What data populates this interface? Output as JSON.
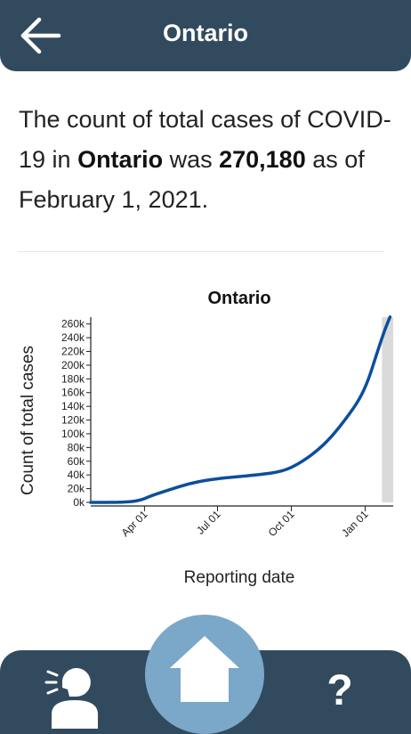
{
  "header": {
    "title": "Ontario",
    "back_icon": "arrow-left-icon"
  },
  "summary": {
    "prefix": "The count of total cases of COVID-19 in ",
    "region": "Ontario",
    "middle": " was ",
    "count": "270,180",
    "suffix": " as of February 1, 2021."
  },
  "chart_data": {
    "type": "line",
    "title": "Ontario",
    "xlabel": "Reporting date",
    "ylabel": "Count of total cases",
    "ylim": [
      0,
      270000
    ],
    "y_ticks": [
      0,
      20000,
      40000,
      60000,
      80000,
      100000,
      120000,
      140000,
      160000,
      180000,
      200000,
      220000,
      240000,
      260000
    ],
    "y_tick_labels": [
      "0k",
      "20k",
      "40k",
      "60k",
      "80k",
      "100k",
      "120k",
      "140k",
      "160k",
      "180k",
      "200k",
      "220k",
      "240k",
      "260k"
    ],
    "xlim": [
      "2020-01-25",
      "2021-02-05"
    ],
    "x_ticks": [
      "2020-04-01",
      "2020-07-01",
      "2020-10-01",
      "2021-01-01"
    ],
    "x_tick_labels": [
      "Apr 01",
      "Jul 01",
      "Oct 01",
      "Jan 01"
    ],
    "highlight_range": [
      "2021-01-22",
      "2021-02-05"
    ],
    "grid": false,
    "series": [
      {
        "color": "#0b4f9c",
        "x": [
          "2020-01-25",
          "2020-03-01",
          "2020-03-25",
          "2020-04-10",
          "2020-05-01",
          "2020-05-25",
          "2020-06-20",
          "2020-07-20",
          "2020-08-20",
          "2020-09-20",
          "2020-10-10",
          "2020-10-31",
          "2020-11-20",
          "2020-12-10",
          "2020-12-25",
          "2021-01-05",
          "2021-01-15",
          "2021-01-25",
          "2021-02-01"
        ],
        "y": [
          0,
          0,
          2000,
          10000,
          18000,
          27000,
          33000,
          37000,
          40000,
          45000,
          56000,
          73000,
          95000,
          125000,
          150000,
          178000,
          215000,
          250000,
          270180
        ]
      }
    ]
  },
  "bottom_nav": {
    "speaker_icon": "speaking-person-icon",
    "home_icon": "home-icon",
    "help_label": "?"
  }
}
